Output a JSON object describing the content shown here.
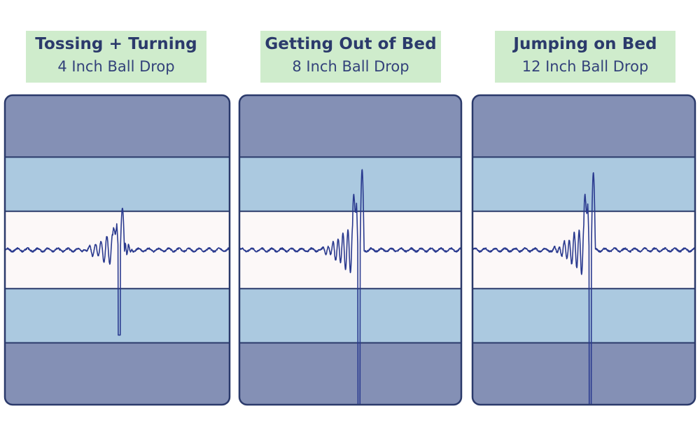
{
  "colors": {
    "label_bg": "#cfeccc",
    "label_text": "#2b3a6b",
    "outer_band": "#8490b5",
    "middle_band": "#abc9e0",
    "center_band": "#fcf8f8",
    "border": "#2b3a6b",
    "signal": "#2a3a8f"
  },
  "chart_data": [
    {
      "type": "line",
      "title": "Tossing + Turning",
      "subtitle": "4 Inch Ball Drop",
      "xlabel": "",
      "ylabel": "",
      "ylim": [
        -1,
        1
      ],
      "bands": [
        {
          "name": "outer",
          "from": 0.6,
          "to": 1.0
        },
        {
          "name": "middle",
          "from": 0.25,
          "to": 0.6
        },
        {
          "name": "center",
          "from": -0.25,
          "to": 0.25
        },
        {
          "name": "middle",
          "from": -0.6,
          "to": -0.25
        },
        {
          "name": "outer",
          "from": -1.0,
          "to": -0.6
        }
      ],
      "series": [
        {
          "impact_x": 0.51,
          "pre_amp": 0.13,
          "pre_periods": 7,
          "peak_high": 0.27,
          "peak_low": -0.55,
          "ringdown_amp": 0.05,
          "noise_amp": 0.01
        }
      ]
    },
    {
      "type": "line",
      "title": "Getting Out of Bed",
      "subtitle": "8 Inch Ball Drop",
      "xlabel": "",
      "ylabel": "",
      "ylim": [
        -1,
        1
      ],
      "bands": [
        {
          "name": "outer",
          "from": 0.6,
          "to": 1.0
        },
        {
          "name": "middle",
          "from": 0.25,
          "to": 0.6
        },
        {
          "name": "center",
          "from": -0.25,
          "to": 0.25
        },
        {
          "name": "middle",
          "from": -0.6,
          "to": -0.25
        },
        {
          "name": "outer",
          "from": -1.0,
          "to": -0.6
        }
      ],
      "series": [
        {
          "impact_x": 0.54,
          "pre_amp": 0.2,
          "pre_periods": 8,
          "peak_high": 0.52,
          "peak_low": -1.0,
          "ringdown_amp": 0.0,
          "noise_amp": 0.01
        }
      ]
    },
    {
      "type": "line",
      "title": "Jumping on Bed",
      "subtitle": "12 Inch Ball Drop",
      "xlabel": "",
      "ylabel": "",
      "ylim": [
        -1,
        1
      ],
      "bands": [
        {
          "name": "outer",
          "from": 0.6,
          "to": 1.0
        },
        {
          "name": "middle",
          "from": 0.25,
          "to": 0.6
        },
        {
          "name": "center",
          "from": -0.25,
          "to": 0.25
        },
        {
          "name": "middle",
          "from": -0.6,
          "to": -0.25
        },
        {
          "name": "outer",
          "from": -1.0,
          "to": -0.6
        }
      ],
      "series": [
        {
          "impact_x": 0.53,
          "pre_amp": 0.2,
          "pre_periods": 8,
          "peak_high": 0.5,
          "peak_low": -1.0,
          "ringdown_amp": 0.0,
          "noise_amp": 0.01
        }
      ]
    }
  ]
}
